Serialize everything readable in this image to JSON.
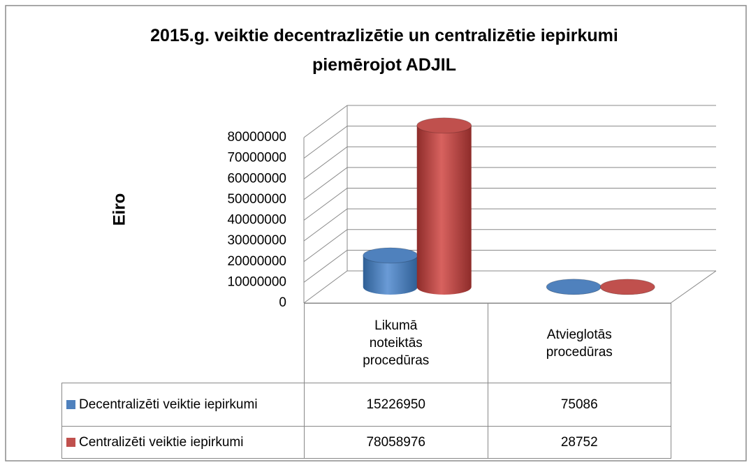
{
  "chart_data": {
    "type": "bar3d",
    "title": "2015.g. veiktie decentrazlizētie un centralizētie iepirkumi piemērojot ADJIL",
    "y_label": "Eiro",
    "categories": [
      "Likumā noteiktās procedūras",
      "Atvieglotās procedūras"
    ],
    "series": [
      {
        "name": "Decentralizēti veiktie iepirkumi",
        "color": "#4f81bd",
        "values": [
          15226950,
          75086
        ]
      },
      {
        "name": "Centralizēti veiktie iepirkumi",
        "color": "#c0504d",
        "values": [
          78058976,
          28752
        ]
      }
    ],
    "ylim": [
      0,
      80000000
    ],
    "yticks": [
      0,
      10000000,
      20000000,
      30000000,
      40000000,
      50000000,
      60000000,
      70000000,
      80000000
    ],
    "grid": true,
    "data_table": true
  }
}
